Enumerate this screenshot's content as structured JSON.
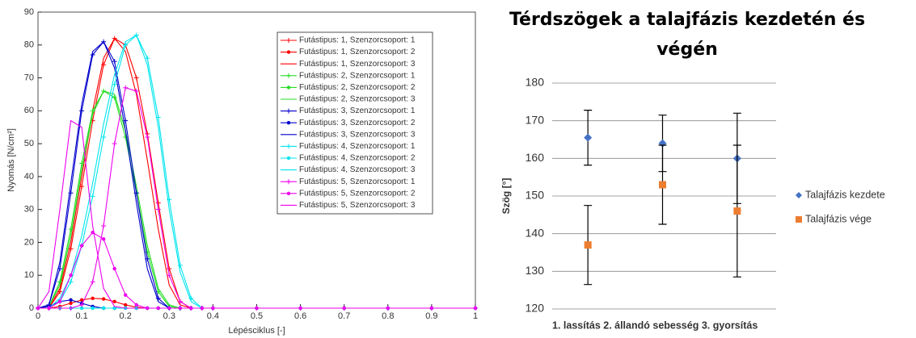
{
  "chart_data": [
    {
      "type": "line",
      "xlabel": "Lépésciklus [-]",
      "ylabel": "Nyomás [N/cm²]",
      "x": [
        0,
        0.025,
        0.05,
        0.075,
        0.1,
        0.125,
        0.15,
        0.175,
        0.2,
        0.225,
        0.25,
        0.275,
        0.3,
        0.325,
        0.35,
        0.375,
        0.4,
        0.5,
        0.6,
        0.7,
        0.8,
        0.9,
        1
      ],
      "xlim": [
        0,
        1
      ],
      "xticks": [
        0,
        0.1,
        0.2,
        0.3,
        0.4,
        0.5,
        0.6,
        0.7,
        0.8,
        0.9,
        1
      ],
      "ylim": [
        0,
        90
      ],
      "yticks": [
        0,
        10,
        20,
        30,
        40,
        50,
        60,
        70,
        80,
        90
      ],
      "legend": "top-right",
      "series": [
        {
          "name": "Futástipus: 1, Szenzorcsoport: 1",
          "color": "#ff0000",
          "marker": "+",
          "values": [
            0,
            0,
            5,
            18,
            37,
            57,
            74,
            82,
            80,
            70,
            53,
            32,
            12,
            2,
            0,
            0,
            0,
            0,
            0,
            0,
            0,
            0,
            0
          ]
        },
        {
          "name": "Futástipus: 1, Szenzorcsoport: 2",
          "color": "#ff0000",
          "marker": "*",
          "values": [
            0,
            0,
            0.5,
            1.5,
            2.5,
            3,
            2.8,
            2,
            1,
            0.3,
            0,
            0,
            0,
            0,
            0,
            0,
            0,
            0,
            0,
            0,
            0,
            0,
            0
          ]
        },
        {
          "name": "Futástipus: 1, Szenzorcsoport: 3",
          "color": "#ff0000",
          "marker": "none",
          "values": [
            0,
            0,
            6,
            20,
            40,
            60,
            76,
            82,
            78,
            65,
            45,
            24,
            7,
            1,
            0,
            0,
            0,
            0,
            0,
            0,
            0,
            0,
            0
          ]
        },
        {
          "name": "Futástipus: 2, Szenzorcsoport: 1",
          "color": "#22dd22",
          "marker": "+",
          "values": [
            0,
            0.5,
            8,
            24,
            44,
            60,
            66,
            64,
            52,
            35,
            17,
            5,
            0.5,
            0,
            0,
            0,
            0,
            0,
            0,
            0,
            0,
            0,
            0
          ]
        },
        {
          "name": "Futástipus: 2, Szenzorcsoport: 2",
          "color": "#22dd22",
          "marker": "*",
          "values": [
            0,
            0,
            0,
            0,
            0,
            0,
            0,
            0,
            0,
            0,
            0,
            0,
            0,
            0,
            0,
            0,
            0,
            0,
            0,
            0,
            0,
            0,
            0
          ]
        },
        {
          "name": "Futástipus: 2, Szenzorcsoport: 3",
          "color": "#22dd22",
          "marker": "none",
          "values": [
            0,
            0.5,
            7,
            22,
            42,
            59,
            66,
            65,
            54,
            37,
            19,
            6,
            1,
            0,
            0,
            0,
            0,
            0,
            0,
            0,
            0,
            0,
            0
          ]
        },
        {
          "name": "Futástipus: 3, Szenzorcsoport: 1",
          "color": "#0000cc",
          "marker": "+",
          "values": [
            0,
            1,
            12,
            35,
            60,
            77,
            81,
            75,
            57,
            35,
            15,
            3,
            0,
            0,
            0,
            0,
            0,
            0,
            0,
            0,
            0,
            0,
            0
          ]
        },
        {
          "name": "Futástipus: 3, Szenzorcsoport: 2",
          "color": "#0000cc",
          "marker": "*",
          "values": [
            0,
            0.5,
            2,
            2.5,
            1.5,
            0.5,
            0,
            0,
            0,
            0,
            0,
            0,
            0,
            0,
            0,
            0,
            0,
            0,
            0,
            0,
            0,
            0,
            0
          ]
        },
        {
          "name": "Futástipus: 3, Szenzorcsoport: 3",
          "color": "#0000cc",
          "marker": "none",
          "values": [
            0,
            1,
            14,
            38,
            62,
            78,
            81,
            73,
            54,
            32,
            12,
            2,
            0,
            0,
            0,
            0,
            0,
            0,
            0,
            0,
            0,
            0,
            0
          ]
        },
        {
          "name": "Futástipus: 4, Szenzorcsoport: 1",
          "color": "#00e5ee",
          "marker": "+",
          "values": [
            0,
            0,
            2,
            8,
            19,
            34,
            52,
            68,
            80,
            83,
            76,
            58,
            33,
            13,
            3,
            0,
            0,
            0,
            0,
            0,
            0,
            0,
            0
          ]
        },
        {
          "name": "Futástipus: 4, Szenzorcsoport: 2",
          "color": "#00e5ee",
          "marker": "*",
          "values": [
            0,
            0,
            0,
            0,
            0,
            0,
            0,
            0,
            0,
            0,
            0,
            0,
            0,
            0,
            0,
            0,
            0,
            0,
            0,
            0,
            0,
            0,
            0
          ]
        },
        {
          "name": "Futástipus: 4, Szenzorcsoport: 3",
          "color": "#00e5ee",
          "marker": "none",
          "values": [
            0,
            0,
            3,
            10,
            22,
            38,
            56,
            71,
            81,
            83,
            74,
            55,
            30,
            11,
            2,
            0,
            0,
            0,
            0,
            0,
            0,
            0,
            0
          ]
        },
        {
          "name": "Futástipus: 5, Szenzorcsoport: 1",
          "color": "#ee00ee",
          "marker": "+",
          "values": [
            0,
            0,
            0,
            0,
            1,
            8,
            25,
            50,
            67,
            66,
            52,
            30,
            10,
            2,
            0,
            0,
            0,
            0,
            0,
            0,
            0,
            0,
            0
          ]
        },
        {
          "name": "Futástipus: 5, Szenzorcsoport: 2",
          "color": "#ee00ee",
          "marker": "*",
          "values": [
            0,
            0,
            2,
            10,
            19,
            23,
            21,
            12,
            4,
            1,
            0,
            0,
            0,
            0,
            0,
            0,
            0,
            0,
            0,
            0,
            0,
            0,
            0
          ]
        },
        {
          "name": "Futástipus: 5, Szenzorcsoport: 3",
          "color": "#ee00ee",
          "marker": "none",
          "values": [
            0,
            5,
            30,
            57,
            55,
            25,
            6,
            0.5,
            0,
            0,
            0,
            0,
            0,
            0,
            0,
            0,
            0,
            0,
            0,
            0,
            0,
            0,
            0
          ]
        }
      ]
    },
    {
      "type": "scatter",
      "title": "Térdszögek a talajfázis kezdetén és végén",
      "xlabel": "1. lassítás 2. állandó sebesség 3. gyorsítás",
      "ylabel": "Szög [°]",
      "categories": [
        null,
        null,
        null
      ],
      "ylim": [
        120,
        180
      ],
      "yticks": [
        120,
        130,
        140,
        150,
        160,
        170,
        180
      ],
      "grid": true,
      "legend": "right",
      "series": [
        {
          "name": "Talajfázis kezdete",
          "color": "#4472c4",
          "marker": "diamond",
          "values": [
            165.5,
            164,
            160
          ],
          "errors": [
            7.3,
            7.5,
            12
          ]
        },
        {
          "name": "Talajfázis vége",
          "color": "#ed7d31",
          "marker": "square",
          "values": [
            137,
            153,
            146
          ],
          "errors": [
            10.5,
            10.5,
            17.5
          ]
        }
      ]
    }
  ]
}
